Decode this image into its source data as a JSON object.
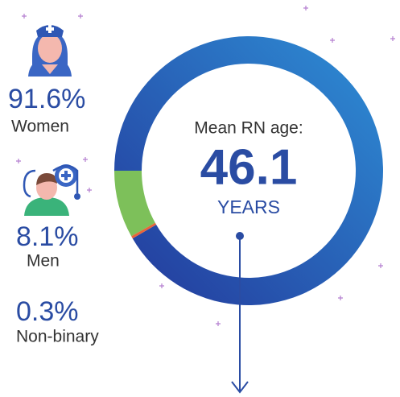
{
  "chart_data": {
    "type": "donut",
    "categories": [
      "Women",
      "Men",
      "Non-binary"
    ],
    "values": [
      91.6,
      8.1,
      0.3
    ],
    "value_labels": [
      "91.6%",
      "8.1%",
      "0.3%"
    ],
    "colors": [
      "#2d5fb8",
      "#7dc05a",
      "#e8643a"
    ],
    "center_label": "Mean RN age:",
    "center_value": 46.1,
    "center_unit": "YEARS"
  }
}
